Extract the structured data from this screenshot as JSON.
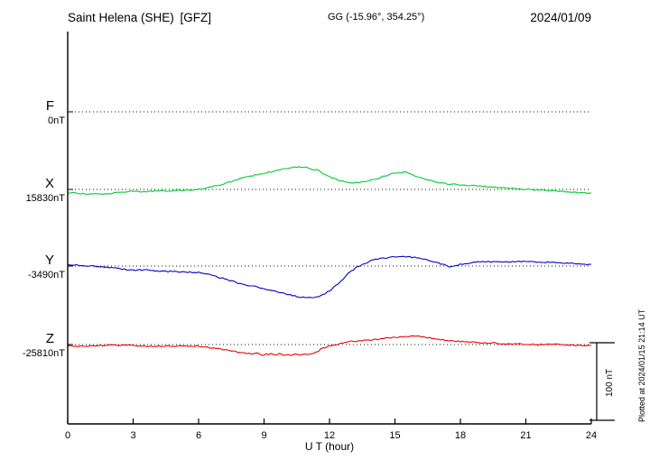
{
  "header": {
    "station": "Saint Helena (SHE) [GFZ]",
    "coords": "GG (-15.96°, 354.25°)",
    "date": "2024/01/09"
  },
  "axes": {
    "xlabel": "U T (hour)",
    "xticks": [
      0,
      3,
      6,
      9,
      12,
      15,
      18,
      21,
      24
    ],
    "xrange": [
      0,
      24
    ]
  },
  "scale_bar": {
    "label": "100 nT",
    "nT": 100
  },
  "footer": {
    "note": "Plotted at 2024/01/15 21:14 UT"
  },
  "components": [
    {
      "letter": "F",
      "value_label": "0nT",
      "color": "#FFA500"
    },
    {
      "letter": "X",
      "value_label": "15830nT",
      "color": "#00CC33"
    },
    {
      "letter": "Y",
      "value_label": "-3490nT",
      "color": "#0000CC"
    },
    {
      "letter": "Z",
      "value_label": "-25810nT",
      "color": "#EE0000"
    }
  ],
  "chart_data": {
    "type": "line",
    "title": "Saint Helena (SHE) [GFZ] magnetogram 2024/01/09",
    "xlabel": "U T (hour)",
    "ylabel": "nT",
    "xlim": [
      0,
      24
    ],
    "grid": "dotted horizontal baselines per component",
    "y_scale_bar_nT": 100,
    "x_hours": [
      0,
      0.5,
      1,
      1.5,
      2,
      2.5,
      3,
      3.5,
      4,
      4.5,
      5,
      5.5,
      6,
      6.5,
      7,
      7.5,
      8,
      8.5,
      9,
      9.5,
      10,
      10.5,
      11,
      11.5,
      12,
      12.5,
      13,
      13.5,
      14,
      14.5,
      15,
      15.5,
      16,
      16.5,
      17,
      17.5,
      18,
      18.5,
      19,
      19.5,
      20,
      20.5,
      21,
      21.5,
      22,
      22.5,
      23,
      23.5,
      24
    ],
    "series": [
      {
        "name": "F",
        "unit": "nT",
        "baseline": 0,
        "color": "#FFA500",
        "values": null
      },
      {
        "name": "X",
        "unit": "nT",
        "baseline": 15830,
        "color": "#00CC33",
        "values": [
          15826,
          15825,
          15824,
          15824,
          15825,
          15826,
          15828,
          15827,
          15828,
          15828,
          15829,
          15829,
          15830,
          15833,
          15836,
          15840,
          15845,
          15848,
          15851,
          15854,
          15857,
          15859,
          15858,
          15854,
          15846,
          15841,
          15838,
          15840,
          15842,
          15847,
          15851,
          15852,
          15846,
          15842,
          15839,
          15837,
          15836,
          15835,
          15834,
          15833,
          15832,
          15831,
          15830,
          15829,
          15829,
          15828,
          15826,
          15826,
          15825
        ]
      },
      {
        "name": "Y",
        "unit": "nT",
        "baseline": -3490,
        "color": "#0000CC",
        "values": [
          -3488,
          -3489,
          -3490,
          -3491,
          -3492,
          -3494,
          -3495,
          -3495,
          -3496,
          -3497,
          -3497,
          -3498,
          -3498,
          -3501,
          -3505,
          -3509,
          -3514,
          -3516,
          -3519,
          -3523,
          -3526,
          -3529,
          -3531,
          -3530,
          -3522,
          -3510,
          -3496,
          -3488,
          -3482,
          -3480,
          -3478,
          -3478,
          -3479,
          -3482,
          -3486,
          -3491,
          -3488,
          -3486,
          -3484,
          -3485,
          -3485,
          -3484,
          -3484,
          -3485,
          -3485,
          -3486,
          -3486,
          -3487,
          -3488
        ]
      },
      {
        "name": "Z",
        "unit": "nT",
        "baseline": -25810,
        "color": "#EE0000",
        "values": [
          -25812,
          -25812,
          -25812,
          -25811,
          -25811,
          -25811,
          -25811,
          -25812,
          -25812,
          -25812,
          -25812,
          -25812,
          -25812,
          -25814,
          -25816,
          -25818,
          -25821,
          -25822,
          -25823,
          -25823,
          -25823,
          -25822,
          -25822,
          -25818,
          -25812,
          -25809,
          -25806,
          -25805,
          -25804,
          -25802,
          -25801,
          -25800,
          -25799,
          -25801,
          -25803,
          -25805,
          -25806,
          -25807,
          -25808,
          -25808,
          -25809,
          -25809,
          -25810,
          -25810,
          -25810,
          -25810,
          -25811,
          -25811,
          -25811
        ]
      }
    ]
  }
}
